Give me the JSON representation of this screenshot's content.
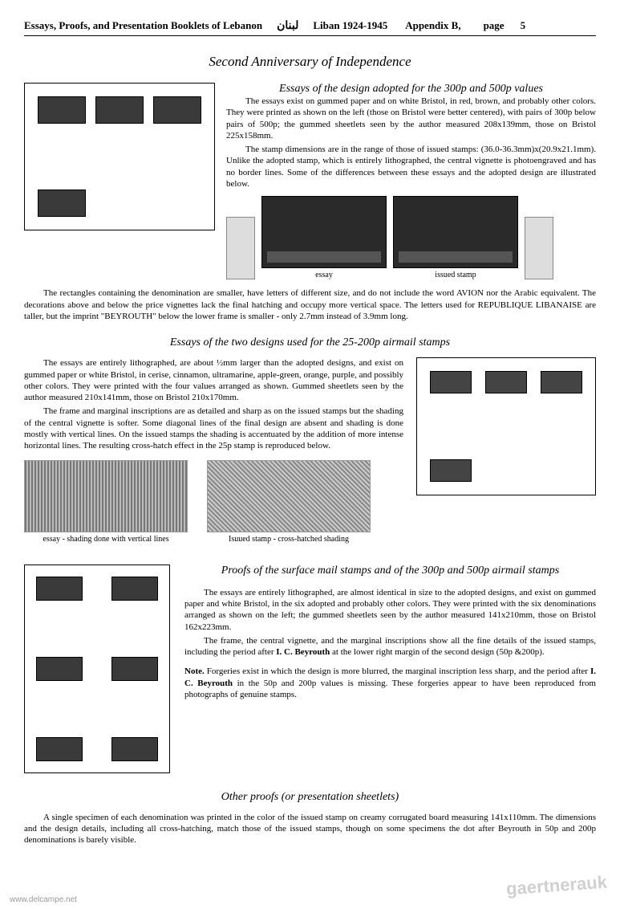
{
  "header": {
    "title_left": "Essays, Proofs, and Presentation Booklets of Lebanon",
    "arabic": "لبنان",
    "mid": "Liban  1924-1945",
    "appendix": "Appendix B,",
    "page_label": "page",
    "page_num": "5"
  },
  "section1": {
    "title": "Second Anniversary of Independence",
    "subtitle": "Essays of the design adopted for the 300p and 500p values",
    "p1": "The essays exist on gummed paper and on white Bristol, in red, brown, and probably other colors. They were printed as shown on the left (those on Bristol were better centered), with pairs of 300p below pairs of 500p; the gummed sheetlets seen by the author measured 208x139mm, those on Bristol 225x158mm.",
    "p2": "The stamp dimensions are in the range of those of issued stamps: (36.0-36.3mm)x(20.9x21.1mm). Unlike the adopted stamp, which is entirely lithographed, the central vignette is photoengraved and has no border lines. Some of the differences between these essays and the adopted design are illustrated below.",
    "cap_essay": "essay",
    "cap_issued": "issued stamp"
  },
  "section2": {
    "p1": "The rectangles containing the denomination are smaller, have letters of different size, and do not include the word AVION nor the Arabic equivalent. The decorations above and below the price vignettes lack the final hatching and occupy more vertical space. The letters used for REPUBLIQUE LIBANAISE are taller, but the imprint \"BEYROUTH\" below the lower frame is smaller - only  2.7mm instead of 3.9mm long."
  },
  "section3": {
    "title": "Essays of the two designs used for the 25-200p airmail stamps",
    "p1": "The essays are entirely lithographed, are about ½mm larger than the adopted designs, and exist on gummed paper or white Bristol, in cerise, cinnamon, ultramarine, apple-green, orange, purple, and possibly other colors. They were printed with the four values arranged as shown. Gummed sheetlets seen by the author measured 210x141mm, those on Bristol 210x170mm.",
    "p2": "The frame and marginal inscriptions are as detailed and sharp as on the issued stamps but the shading of the central vignette is softer. Some diagonal lines of the final design are absent and shading is done mostly with vertical lines. On the issued stamps the shading is accentuated by the addition of more intense horizontal lines. The resulting cross-hatch effect in the 25p stamp is reproduced below.",
    "cap_left": "essay - shading done with vertical lines",
    "cap_right": "Isuued stamp -   cross-hatched shading"
  },
  "section4": {
    "title": "Proofs of the surface mail stamps and of the 300p and 500p airmail stamps",
    "p1": "The essays are entirely lithographed, are almost identical in size to the adopted designs, and exist on gummed paper and white Bristol, in the six adopted and probably other colors. They were printed with the six denominations arranged as shown on the left; the gummed sheetlets seen by the author  measured 141x210mm, those on Bristol 162x223mm.",
    "p2_a": "The frame, the central vignette, and the marginal inscriptions  show all the fine details of the issued stamps, including the period after ",
    "p2_bold": "I. C. Beyrouth",
    "p2_b": " at the lower right margin of the second design (50p &200p).",
    "note_a": "Note. ",
    "note_b": "Forgeries exist in which the design is more blurred, the marginal inscription less sharp, and the period after ",
    "note_bold": "I. C. Beyrouth",
    "note_c": " in the 50p and 200p values  is missing. These forgeries appear to have been reproduced from photographs of genuine stamps."
  },
  "section5": {
    "title": "Other proofs (or presentation sheetlets)",
    "p1": "A single specimen of each denomination was printed in the color of the issued stamp on creamy corrugated board measuring 141x110mm. The dimensions and the design details, including all cross-hatching, match those of the issued stamps, though on some specimens the dot after Beyrouth in 50p and 200p denominations is barely visible."
  },
  "watermarks": {
    "left": "www.delcampe.net",
    "right": "gaertnerauk"
  }
}
